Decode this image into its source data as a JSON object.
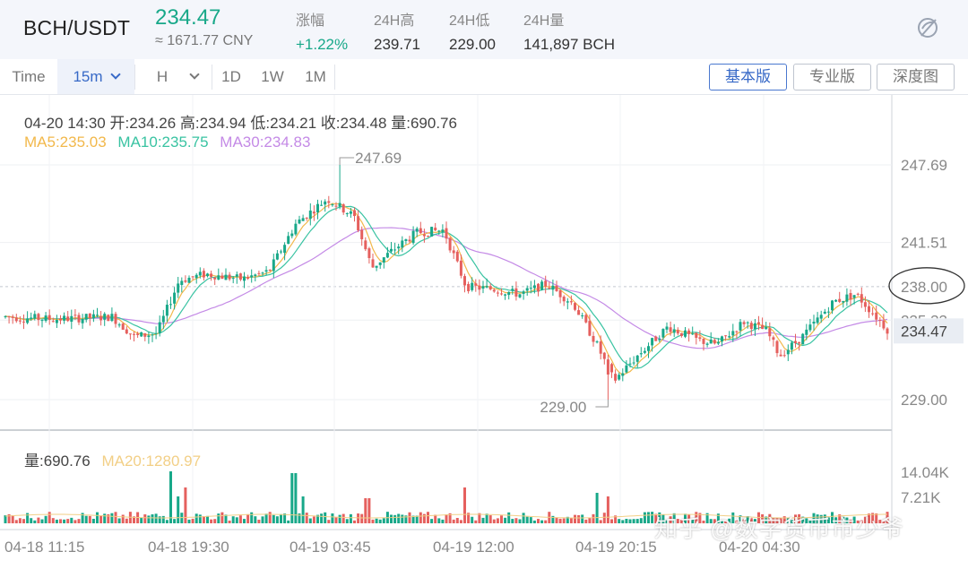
{
  "header": {
    "pair": "BCH/USDT",
    "price": "234.47",
    "price_cny": "≈ 1671.77 CNY",
    "stats": [
      {
        "label": "涨幅",
        "value": "+1.22%"
      },
      {
        "label": "24H高",
        "value": "239.71"
      },
      {
        "label": "24H低",
        "value": "229.00"
      },
      {
        "label": "24H量",
        "value": "141,897 BCH"
      }
    ]
  },
  "toolbar": {
    "time_label": "Time",
    "interval_selected": "15m",
    "hour_label": "H",
    "day_label": "1D",
    "week_label": "1W",
    "month_label": "1M",
    "views": [
      "基本版",
      "专业版",
      "深度图"
    ],
    "active_view": "基本版"
  },
  "ohlc": {
    "line": "04-20 14:30   开:234.26   高:234.94   低:234.21   收:234.48   量:690.76",
    "ma5": "MA5:235.03",
    "ma10": "MA10:235.75",
    "ma30": "MA30:234.83"
  },
  "volume_info": {
    "vol": "量:690.76",
    "ma20": "MA20:1280.97"
  },
  "axis": {
    "price_ticks": [
      "247.69",
      "241.51",
      "238.00",
      "235.33",
      "229.00"
    ],
    "current_price": "234.47",
    "volume_ticks": [
      "14.04K",
      "7.21K"
    ],
    "time_ticks": [
      "04-18 11:15",
      "04-18 19:30",
      "04-19 03:45",
      "04-19 12:00",
      "04-19 20:15",
      "04-20 04:30"
    ],
    "high_marker": "247.69",
    "low_marker": "229.00"
  },
  "colors": {
    "up": "#18a889",
    "down": "#e5605e",
    "ma5": "#f2b84b",
    "ma10": "#39c3a2",
    "ma30": "#c48ae6"
  },
  "watermark": "知乎 @数字货币市少爷"
}
